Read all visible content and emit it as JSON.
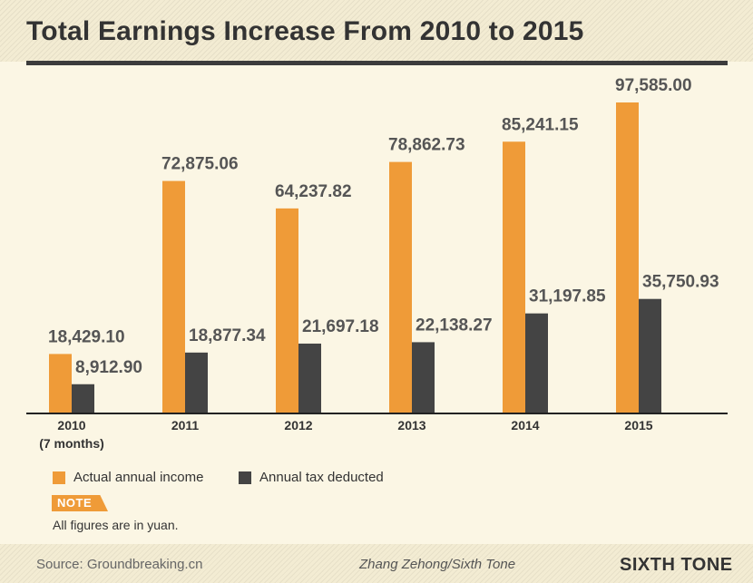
{
  "header": {
    "title": "Total Earnings Increase From 2010 to 2015"
  },
  "colors": {
    "income": "#ef9b38",
    "tax": "#444444",
    "text": "#555555",
    "background": "#fbf6e4"
  },
  "chart_data": {
    "type": "bar",
    "title": "Total Earnings Increase From 2010 to 2015",
    "categories": [
      "2010",
      "2011",
      "2012",
      "2013",
      "2014",
      "2015"
    ],
    "category_sublabels": [
      "(7 months)",
      "",
      "",
      "",
      "",
      ""
    ],
    "series": [
      {
        "name": "Actual annual income",
        "values": [
          18429.1,
          72875.06,
          64237.82,
          78862.73,
          85241.15,
          97585.0
        ],
        "labels": [
          "18,429.10",
          "72,875.06",
          "64,237.82",
          "78,862.73",
          "85,241.15",
          "97,585.00"
        ]
      },
      {
        "name": "Annual tax deducted",
        "values": [
          8912.9,
          18877.34,
          21697.18,
          22138.27,
          31197.85,
          35750.93
        ],
        "labels": [
          "8,912.90",
          "18,877.34",
          "21,697.18",
          "22,138.27",
          "31,197.85",
          "35,750.93"
        ]
      }
    ],
    "ylim": [
      0,
      100000
    ],
    "grid": false,
    "legend": "bottom-left"
  },
  "legend": {
    "income_label": "Actual annual income",
    "tax_label": "Annual tax deducted"
  },
  "note": {
    "tag": "NOTE",
    "text": "All figures are in yuan."
  },
  "footer": {
    "source": "Source: Groundbreaking.cn",
    "credit": "Zhang Zehong/Sixth Tone",
    "brand": "SIXTH TONE"
  }
}
